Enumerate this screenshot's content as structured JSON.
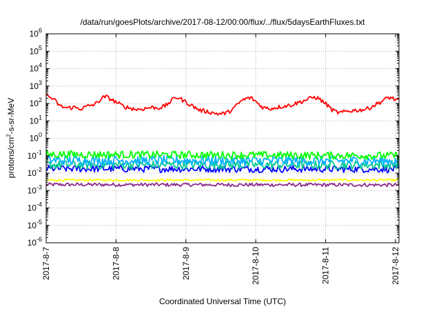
{
  "chart_data": {
    "type": "line",
    "title": "/data/run/goesPlots/archive/2017-08-12/00:00/flux/../flux/5daysEarthFluxes.txt",
    "xlabel": "Coordinated Universal Time (UTC)",
    "ylabel": {
      "pre": "protons/cm",
      "sup": "2",
      "post": "-s-sr-MeV"
    },
    "yscale": "log",
    "ylim_exp": [
      -6,
      6
    ],
    "y_tick_exps": [
      "-6",
      "-5",
      "-4",
      "-3",
      "-2",
      "-1",
      "0",
      "1",
      "2",
      "3",
      "4",
      "5",
      "6"
    ],
    "y_tick_base": "10",
    "xlim_days": [
      0,
      5.05
    ],
    "x_ticks": [
      {
        "label": "2017-8-7",
        "day": 0
      },
      {
        "label": "2017-8-8",
        "day": 1
      },
      {
        "label": "2017-8-9",
        "day": 2
      },
      {
        "label": "2017-8-10",
        "day": 3
      },
      {
        "label": "2017-8-11",
        "day": 4
      },
      {
        "label": "2017-8-12",
        "day": 5
      }
    ],
    "grid": true,
    "series": [
      {
        "color": "#ff0000",
        "days": [
          0,
          0.1,
          0.2,
          0.3,
          0.4,
          0.5,
          0.6,
          0.7,
          0.8,
          0.85,
          0.9,
          1.0,
          1.1,
          1.2,
          1.3,
          1.4,
          1.5,
          1.6,
          1.7,
          1.8,
          1.85,
          1.9,
          2.0,
          2.1,
          2.2,
          2.3,
          2.4,
          2.5,
          2.6,
          2.7,
          2.8,
          2.9,
          2.95,
          3.0,
          3.1,
          3.2,
          3.3,
          3.4,
          3.5,
          3.6,
          3.7,
          3.8,
          3.85,
          3.9,
          4.0,
          4.1,
          4.2,
          4.3,
          4.4,
          4.5,
          4.6,
          4.7,
          4.8,
          4.9,
          4.95,
          5.0,
          5.05
        ],
        "values": [
          300,
          180,
          70,
          55,
          60,
          50,
          70,
          90,
          200,
          250,
          200,
          120,
          70,
          55,
          45,
          50,
          60,
          55,
          70,
          150,
          230,
          210,
          120,
          70,
          40,
          35,
          28,
          25,
          30,
          60,
          150,
          210,
          190,
          130,
          60,
          50,
          60,
          70,
          80,
          110,
          150,
          210,
          230,
          190,
          100,
          40,
          28,
          35,
          40,
          42,
          50,
          80,
          130,
          220,
          210,
          160,
          140
        ],
        "noise": 0.12
      },
      {
        "color": "#00ff00",
        "days": [
          0,
          5.05
        ],
        "values": [
          0.12,
          0.1
        ],
        "noise": 0.22
      },
      {
        "color": "#00b0ff",
        "days": [
          0,
          5.05
        ],
        "values": [
          0.055,
          0.05
        ],
        "noise": 0.28
      },
      {
        "color": "#00c890",
        "days": [
          0,
          5.05
        ],
        "values": [
          0.03,
          0.03
        ],
        "noise": 0.25
      },
      {
        "color": "#0000ff",
        "days": [
          0,
          5.05
        ],
        "values": [
          0.018,
          0.017
        ],
        "noise": 0.2
      },
      {
        "color": "#ffff00",
        "days": [
          0,
          5.05
        ],
        "values": [
          0.004,
          0.004
        ],
        "noise": 0.06
      },
      {
        "color": "#8b2a8b",
        "days": [
          0,
          5.05
        ],
        "values": [
          0.0022,
          0.0021
        ],
        "noise": 0.1
      }
    ]
  }
}
